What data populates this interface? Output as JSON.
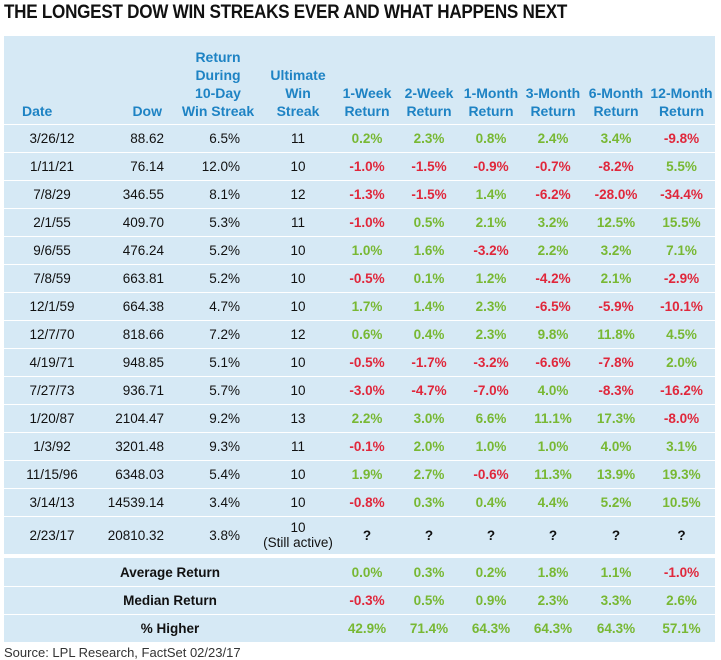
{
  "title": "THE LONGEST DOW WIN STREAKS EVER AND WHAT HAPPENS NEXT",
  "headers": {
    "date": "Date",
    "dow": "Dow",
    "streak_return_l1": "Return",
    "streak_return_l2": "During",
    "streak_return_l3": "10-Day",
    "streak_return_l4": "Win Streak",
    "ultimate_l1": "Ultimate",
    "ultimate_l2": "Win",
    "ultimate_l3": "Streak",
    "w1_l1": "1-Week",
    "w1_l2": "Return",
    "w2_l1": "2-Week",
    "w2_l2": "Return",
    "m1_l1": "1-Month",
    "m1_l2": "Return",
    "m3_l1": "3-Month",
    "m3_l2": "Return",
    "m6_l1": "6-Month",
    "m6_l2": "Return",
    "m12_l1": "12-Month",
    "m12_l2": "Return"
  },
  "rows": [
    {
      "date": "3/26/12",
      "dow": "88.62",
      "streak_return": "6.5%",
      "ultimate": "11",
      "r": [
        "0.2%",
        "2.3%",
        "0.8%",
        "2.4%",
        "3.4%",
        "-9.8%"
      ]
    },
    {
      "date": "1/11/21",
      "dow": "76.14",
      "streak_return": "12.0%",
      "ultimate": "10",
      "r": [
        "-1.0%",
        "-1.5%",
        "-0.9%",
        "-0.7%",
        "-8.2%",
        "5.5%"
      ]
    },
    {
      "date": "7/8/29",
      "dow": "346.55",
      "streak_return": "8.1%",
      "ultimate": "12",
      "r": [
        "-1.3%",
        "-1.5%",
        "1.4%",
        "-6.2%",
        "-28.0%",
        "-34.4%"
      ]
    },
    {
      "date": "2/1/55",
      "dow": "409.70",
      "streak_return": "5.3%",
      "ultimate": "11",
      "r": [
        "-1.0%",
        "0.5%",
        "2.1%",
        "3.2%",
        "12.5%",
        "15.5%"
      ]
    },
    {
      "date": "9/6/55",
      "dow": "476.24",
      "streak_return": "5.2%",
      "ultimate": "10",
      "r": [
        "1.0%",
        "1.6%",
        "-3.2%",
        "2.2%",
        "3.2%",
        "7.1%"
      ]
    },
    {
      "date": "7/8/59",
      "dow": "663.81",
      "streak_return": "5.2%",
      "ultimate": "10",
      "r": [
        "-0.5%",
        "0.1%",
        "1.2%",
        "-4.2%",
        "2.1%",
        "-2.9%"
      ]
    },
    {
      "date": "12/1/59",
      "dow": "664.38",
      "streak_return": "4.7%",
      "ultimate": "10",
      "r": [
        "1.7%",
        "1.4%",
        "2.3%",
        "-6.5%",
        "-5.9%",
        "-10.1%"
      ]
    },
    {
      "date": "12/7/70",
      "dow": "818.66",
      "streak_return": "7.2%",
      "ultimate": "12",
      "r": [
        "0.6%",
        "0.4%",
        "2.3%",
        "9.8%",
        "11.8%",
        "4.5%"
      ]
    },
    {
      "date": "4/19/71",
      "dow": "948.85",
      "streak_return": "5.1%",
      "ultimate": "10",
      "r": [
        "-0.5%",
        "-1.7%",
        "-3.2%",
        "-6.6%",
        "-7.8%",
        "2.0%"
      ]
    },
    {
      "date": "7/27/73",
      "dow": "936.71",
      "streak_return": "5.7%",
      "ultimate": "10",
      "r": [
        "-3.0%",
        "-4.7%",
        "-7.0%",
        "4.0%",
        "-8.3%",
        "-16.2%"
      ]
    },
    {
      "date": "1/20/87",
      "dow": "2104.47",
      "streak_return": "9.2%",
      "ultimate": "13",
      "r": [
        "2.2%",
        "3.0%",
        "6.6%",
        "11.1%",
        "17.3%",
        "-8.0%"
      ]
    },
    {
      "date": "1/3/92",
      "dow": "3201.48",
      "streak_return": "9.3%",
      "ultimate": "11",
      "r": [
        "-0.1%",
        "2.0%",
        "1.0%",
        "1.0%",
        "4.0%",
        "3.1%"
      ]
    },
    {
      "date": "11/15/96",
      "dow": "6348.03",
      "streak_return": "5.4%",
      "ultimate": "10",
      "r": [
        "1.9%",
        "2.7%",
        "-0.6%",
        "11.3%",
        "13.9%",
        "19.3%"
      ]
    },
    {
      "date": "3/14/13",
      "dow": "14539.14",
      "streak_return": "3.4%",
      "ultimate": "10",
      "r": [
        "-0.8%",
        "0.3%",
        "0.4%",
        "4.4%",
        "5.2%",
        "10.5%"
      ]
    }
  ],
  "active_row": {
    "date": "2/23/17",
    "dow": "20810.32",
    "streak_return": "3.8%",
    "ultimate": "10",
    "ultimate_note": "(Still active)",
    "r": [
      "?",
      "?",
      "?",
      "?",
      "?",
      "?"
    ]
  },
  "summary": [
    {
      "label": "Average Return",
      "r": [
        "0.0%",
        "0.3%",
        "0.2%",
        "1.8%",
        "1.1%",
        "-1.0%"
      ]
    },
    {
      "label": "Median Return",
      "r": [
        "-0.3%",
        "0.5%",
        "0.9%",
        "2.3%",
        "3.3%",
        "2.6%"
      ]
    },
    {
      "label": "% Higher",
      "r": [
        "42.9%",
        "71.4%",
        "64.3%",
        "64.3%",
        "64.3%",
        "57.1%"
      ]
    }
  ],
  "source": "Source: LPL Research, FactSet  02/23/17",
  "colors": {
    "positive": "#78b833",
    "negative": "#e0273b",
    "header": "#1e83c4",
    "panel": "#d6e9f5"
  }
}
